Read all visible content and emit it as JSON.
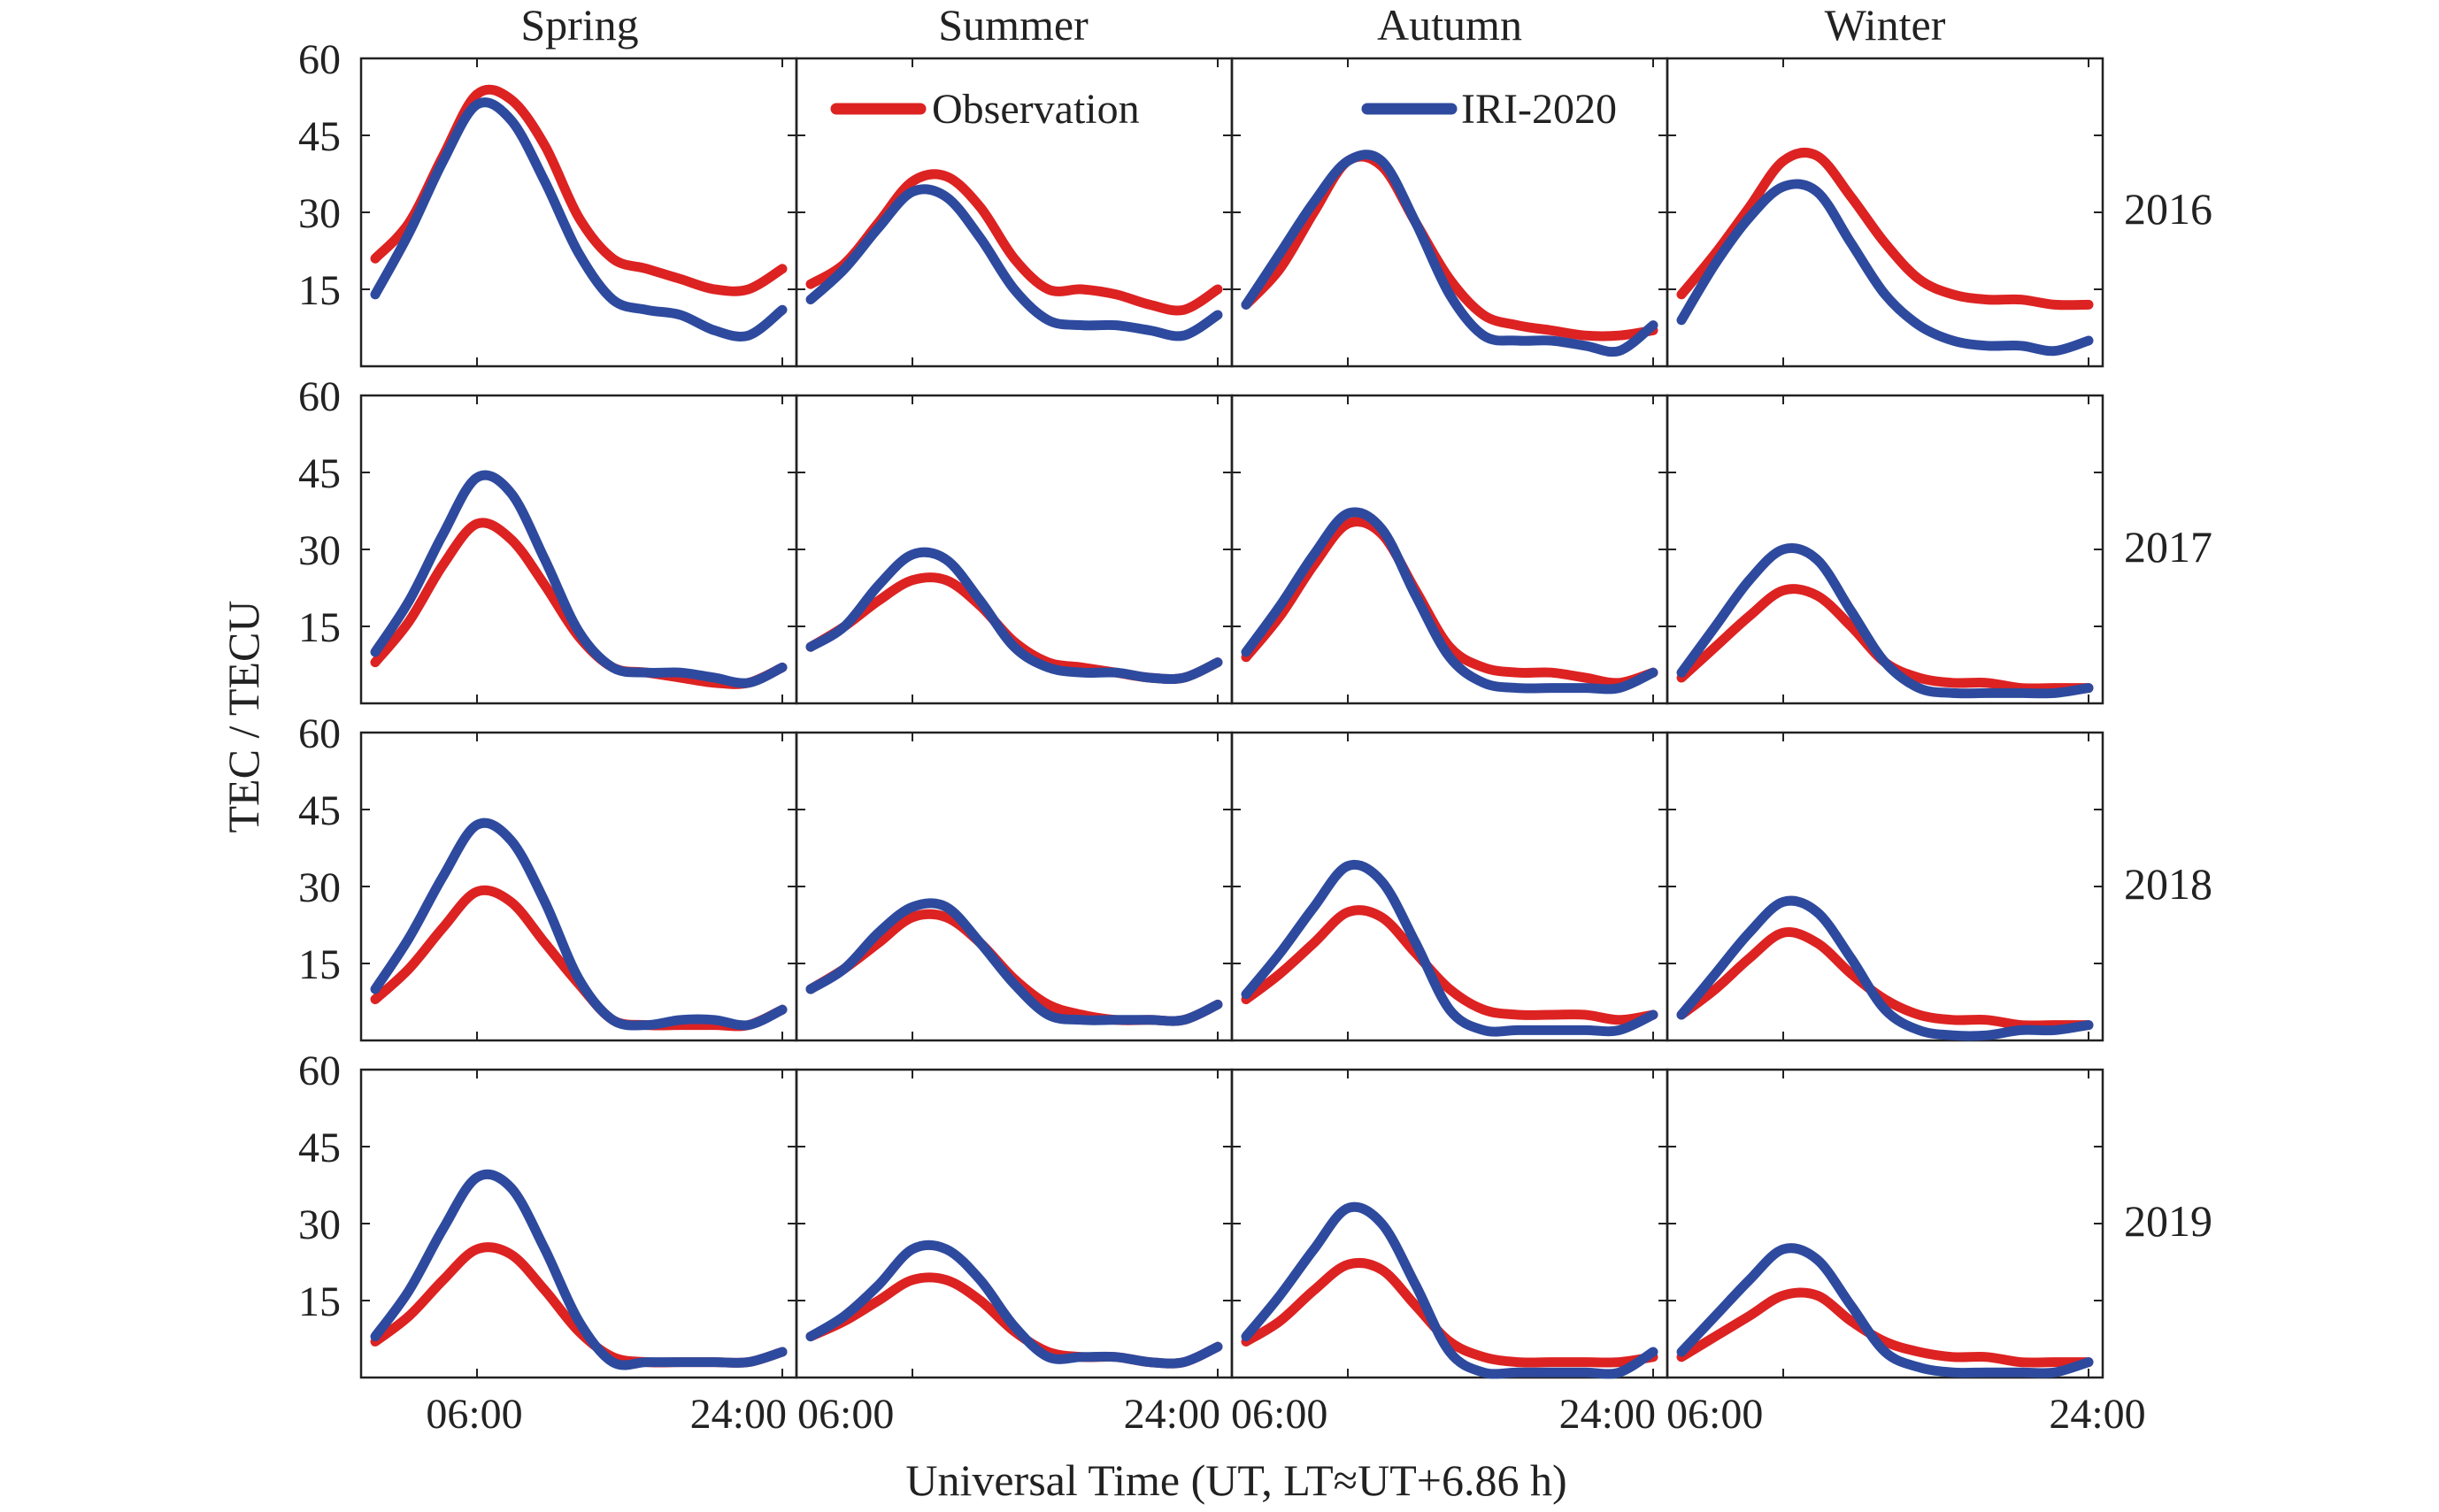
{
  "chart_data": {
    "type": "line",
    "seasons": [
      "Spring",
      "Summer",
      "Autumn",
      "Winter"
    ],
    "years": [
      "2016",
      "2017",
      "2018",
      "2019"
    ],
    "xlabel": "Universal Time (UT,  LT≈UT+6.86 h)",
    "ylabel": "TEC / TECU",
    "xlim": [
      0,
      24
    ],
    "ylim": [
      0,
      60
    ],
    "yticks": [
      "15",
      "30",
      "45",
      "60"
    ],
    "xtick_labels": [
      "06:00",
      "24:00 06:00",
      "24:00 06:00",
      "24:00 06:00",
      "24:00"
    ],
    "x": [
      0,
      2,
      4,
      6,
      8,
      10,
      12,
      14,
      16,
      18,
      20,
      22,
      24
    ],
    "legend": {
      "placement": "top (Summer and Autumn panels, first row)",
      "items": [
        {
          "label": "Observation",
          "color": "#dd2222"
        },
        {
          "label": "IRI-2020",
          "color": "#2e4a9e"
        }
      ]
    },
    "grid": false,
    "panels": [
      {
        "year": "2016",
        "season": "Spring",
        "series": [
          {
            "name": "Observation",
            "values": [
              21,
              28,
              41,
              53,
              52,
              43,
              29,
              21,
              19,
              17,
              15,
              15,
              19
            ]
          },
          {
            "name": "IRI-2020",
            "values": [
              14,
              26,
              40,
              51,
              48,
              36,
              22,
              13,
              11,
              10,
              7,
              6,
              11
            ]
          }
        ]
      },
      {
        "year": "2016",
        "season": "Summer",
        "series": [
          {
            "name": "Observation",
            "values": [
              16,
              20,
              28,
              36,
              37,
              31,
              21,
              15,
              15,
              14,
              12,
              11,
              15
            ]
          },
          {
            "name": "IRI-2020",
            "values": [
              13,
              19,
              27,
              34,
              33,
              25,
              15,
              9,
              8,
              8,
              7,
              6,
              10
            ]
          }
        ]
      },
      {
        "year": "2016",
        "season": "Autumn",
        "series": [
          {
            "name": "Observation",
            "values": [
              12,
              19,
              30,
              40,
              39,
              28,
              17,
              10,
              8,
              7,
              6,
              6,
              7
            ]
          },
          {
            "name": "IRI-2020",
            "values": [
              12,
              22,
              32,
              40,
              40,
              28,
              14,
              6,
              5,
              5,
              4,
              3,
              8
            ]
          }
        ]
      },
      {
        "year": "2016",
        "season": "Winter",
        "series": [
          {
            "name": "Observation",
            "values": [
              14,
              22,
              31,
              40,
              41,
              33,
              24,
              17,
              14,
              13,
              13,
              12,
              12
            ]
          },
          {
            "name": "IRI-2020",
            "values": [
              9,
              20,
              29,
              35,
              34,
              24,
              14,
              8,
              5,
              4,
              4,
              3,
              5
            ]
          }
        ]
      },
      {
        "year": "2017",
        "season": "Spring",
        "series": [
          {
            "name": "Observation",
            "values": [
              8,
              16,
              27,
              35,
              32,
              23,
              13,
              7,
              6,
              5,
              4,
              4,
              7
            ]
          },
          {
            "name": "IRI-2020",
            "values": [
              10,
              20,
              33,
              44,
              41,
              28,
              14,
              7,
              6,
              6,
              5,
              4,
              7
            ]
          }
        ]
      },
      {
        "year": "2017",
        "season": "Summer",
        "series": [
          {
            "name": "Observation",
            "values": [
              11,
              15,
              20,
              24,
              24,
              19,
              12,
              8,
              7,
              6,
              5,
              5,
              8
            ]
          },
          {
            "name": "IRI-2020",
            "values": [
              11,
              15,
              23,
              29,
              28,
              20,
              11,
              7,
              6,
              6,
              5,
              5,
              8
            ]
          }
        ]
      },
      {
        "year": "2017",
        "season": "Autumn",
        "series": [
          {
            "name": "Observation",
            "values": [
              9,
              17,
              27,
              35,
              33,
              22,
              11,
              7,
              6,
              6,
              5,
              4,
              6
            ]
          },
          {
            "name": "IRI-2020",
            "values": [
              10,
              19,
              29,
              37,
              34,
              21,
              9,
              4,
              3,
              3,
              3,
              3,
              6
            ]
          }
        ]
      },
      {
        "year": "2017",
        "season": "Winter",
        "series": [
          {
            "name": "Observation",
            "values": [
              5,
              11,
              17,
              22,
              21,
              15,
              8,
              5,
              4,
              4,
              3,
              3,
              3
            ]
          },
          {
            "name": "IRI-2020",
            "values": [
              6,
              15,
              24,
              30,
              28,
              18,
              8,
              3,
              2,
              2,
              2,
              2,
              3
            ]
          }
        ]
      },
      {
        "year": "2018",
        "season": "Spring",
        "series": [
          {
            "name": "Observation",
            "values": [
              8,
              14,
              22,
              29,
              27,
              19,
              11,
              4,
              3,
              3,
              3,
              3,
              6
            ]
          },
          {
            "name": "IRI-2020",
            "values": [
              10,
              20,
              32,
              42,
              39,
              27,
              12,
              4,
              3,
              4,
              4,
              3,
              6
            ]
          }
        ]
      },
      {
        "year": "2018",
        "season": "Summer",
        "series": [
          {
            "name": "Observation",
            "values": [
              10,
              14,
              19,
              24,
              24,
              19,
              12,
              7,
              5,
              4,
              4,
              4,
              7
            ]
          },
          {
            "name": "IRI-2020",
            "values": [
              10,
              14,
              21,
              26,
              26,
              19,
              11,
              5,
              4,
              4,
              4,
              4,
              7
            ]
          }
        ]
      },
      {
        "year": "2018",
        "season": "Autumn",
        "series": [
          {
            "name": "Observation",
            "values": [
              8,
              13,
              19,
              25,
              24,
              17,
              10,
              6,
              5,
              5,
              5,
              4,
              5
            ]
          },
          {
            "name": "IRI-2020",
            "values": [
              9,
              17,
              26,
              34,
              31,
              19,
              6,
              2,
              2,
              2,
              2,
              2,
              5
            ]
          }
        ]
      },
      {
        "year": "2018",
        "season": "Winter",
        "series": [
          {
            "name": "Observation",
            "values": [
              5,
              10,
              16,
              21,
              19,
              13,
              8,
              5,
              4,
              4,
              3,
              3,
              3
            ]
          },
          {
            "name": "IRI-2020",
            "values": [
              5,
              13,
              21,
              27,
              25,
              16,
              6,
              2,
              1,
              1,
              2,
              2,
              3
            ]
          }
        ]
      },
      {
        "year": "2019",
        "season": "Spring",
        "series": [
          {
            "name": "Observation",
            "values": [
              7,
              12,
              19,
              25,
              24,
              17,
              9,
              4,
              3,
              3,
              3,
              3,
              5
            ]
          },
          {
            "name": "IRI-2020",
            "values": [
              8,
              17,
              29,
              39,
              37,
              25,
              11,
              3,
              3,
              3,
              3,
              3,
              5
            ]
          }
        ]
      },
      {
        "year": "2019",
        "season": "Summer",
        "series": [
          {
            "name": "Observation",
            "values": [
              8,
              11,
              15,
              19,
              19,
              15,
              9,
              5,
              4,
              4,
              3,
              3,
              6
            ]
          },
          {
            "name": "IRI-2020",
            "values": [
              8,
              12,
              18,
              25,
              25,
              19,
              10,
              4,
              4,
              4,
              3,
              3,
              6
            ]
          }
        ]
      },
      {
        "year": "2019",
        "season": "Autumn",
        "series": [
          {
            "name": "Observation",
            "values": [
              7,
              11,
              17,
              22,
              21,
              14,
              7,
              4,
              3,
              3,
              3,
              3,
              4
            ]
          },
          {
            "name": "IRI-2020",
            "values": [
              8,
              16,
              25,
              33,
              30,
              18,
              5,
              1,
              1,
              1,
              1,
              1,
              5
            ]
          }
        ]
      },
      {
        "year": "2019",
        "season": "Winter",
        "series": [
          {
            "name": "Observation",
            "values": [
              4,
              8,
              12,
              16,
              16,
              11,
              7,
              5,
              4,
              4,
              3,
              3,
              3
            ]
          },
          {
            "name": "IRI-2020",
            "values": [
              5,
              12,
              19,
              25,
              23,
              14,
              5,
              2,
              1,
              1,
              1,
              1,
              3
            ]
          }
        ]
      }
    ]
  }
}
